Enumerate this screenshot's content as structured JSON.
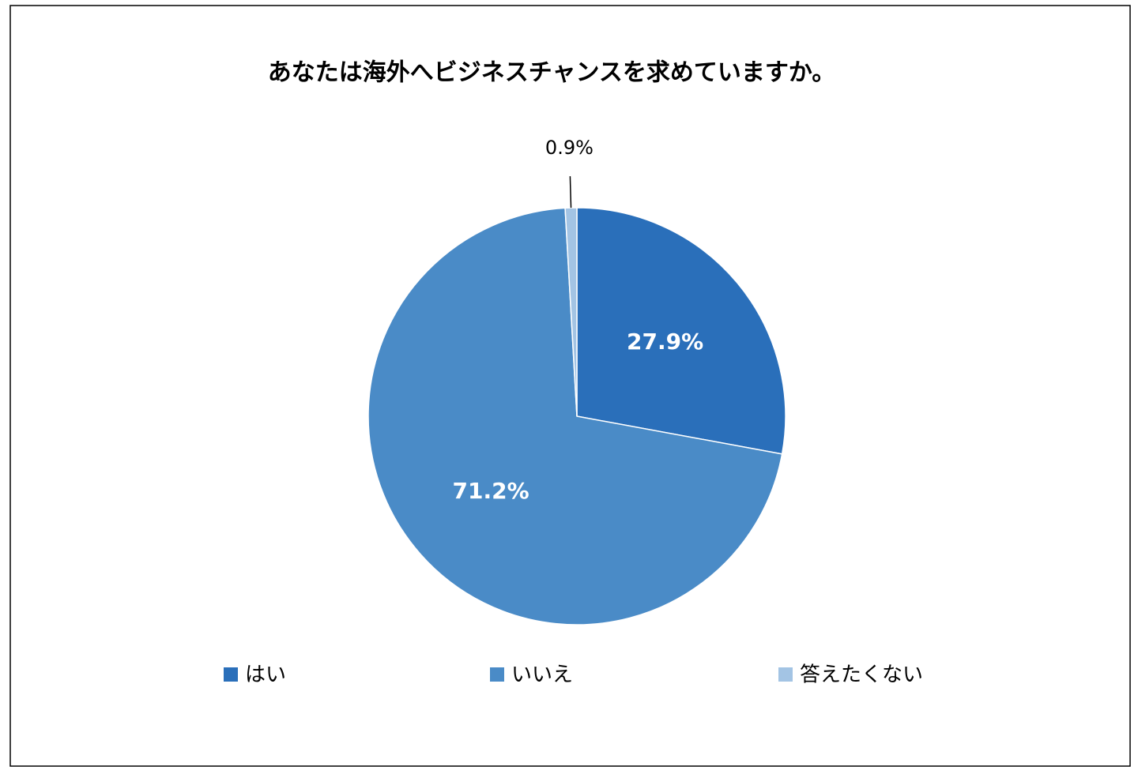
{
  "chart_data": {
    "type": "pie",
    "title": "あなたは海外へビジネスチャンスを求めていますか。",
    "categories": [
      "はい",
      "いいえ",
      "答えたくない"
    ],
    "values": [
      27.9,
      71.2,
      0.9
    ],
    "value_labels": [
      "27.9%",
      "71.2%",
      "0.9%"
    ],
    "colors": [
      "#2a6fba",
      "#4a8bc7",
      "#a3c4e4"
    ],
    "legend": "bottom"
  }
}
